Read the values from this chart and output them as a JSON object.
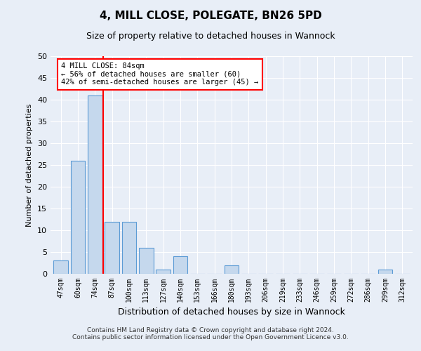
{
  "title": "4, MILL CLOSE, POLEGATE, BN26 5PD",
  "subtitle": "Size of property relative to detached houses in Wannock",
  "xlabel": "Distribution of detached houses by size in Wannock",
  "ylabel": "Number of detached properties",
  "bar_labels": [
    "47sqm",
    "60sqm",
    "74sqm",
    "87sqm",
    "100sqm",
    "113sqm",
    "127sqm",
    "140sqm",
    "153sqm",
    "166sqm",
    "180sqm",
    "193sqm",
    "206sqm",
    "219sqm",
    "233sqm",
    "246sqm",
    "259sqm",
    "272sqm",
    "286sqm",
    "299sqm",
    "312sqm"
  ],
  "bar_values": [
    3,
    26,
    41,
    12,
    12,
    6,
    1,
    4,
    0,
    0,
    2,
    0,
    0,
    0,
    0,
    0,
    0,
    0,
    0,
    1,
    0
  ],
  "bar_color": "#c5d8ed",
  "bar_edgecolor": "#5b9bd5",
  "annotation_text": "4 MILL CLOSE: 84sqm\n← 56% of detached houses are smaller (60)\n42% of semi-detached houses are larger (45) →",
  "annotation_box_color": "white",
  "annotation_box_edgecolor": "red",
  "vline_color": "red",
  "ylim": [
    0,
    50
  ],
  "yticks": [
    0,
    5,
    10,
    15,
    20,
    25,
    30,
    35,
    40,
    45,
    50
  ],
  "footer_line1": "Contains HM Land Registry data © Crown copyright and database right 2024.",
  "footer_line2": "Contains public sector information licensed under the Open Government Licence v3.0.",
  "bg_color": "#e8eef7",
  "plot_bg_color": "#e8eef7"
}
